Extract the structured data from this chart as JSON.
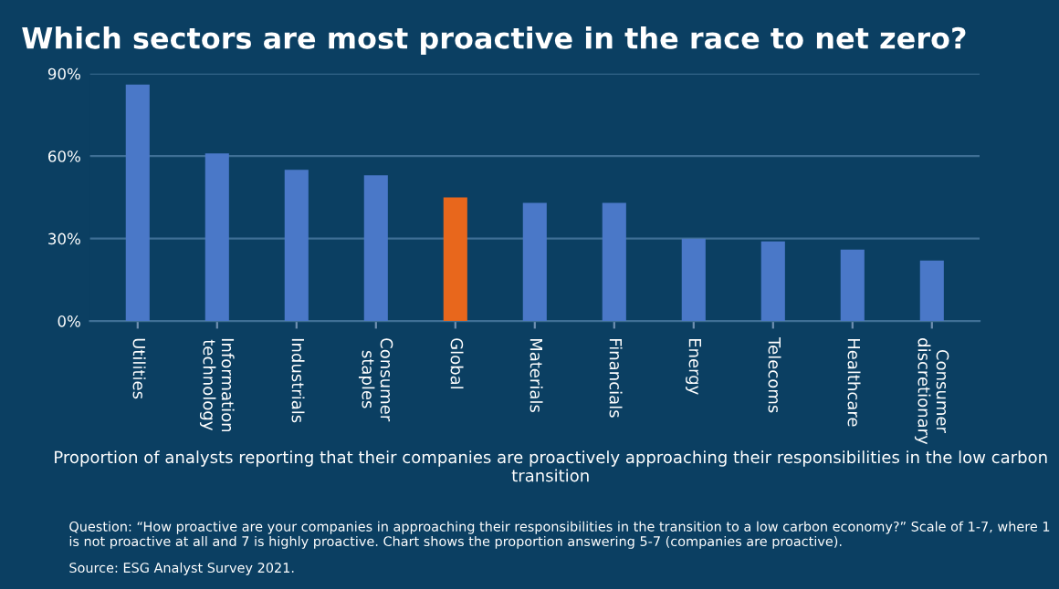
{
  "chart_data": {
    "type": "bar",
    "title": "Which sectors are most proactive in the race to net zero?",
    "categories": [
      "Utilities",
      "Information\ntechnology",
      "Industrials",
      "Consumer\nstaples",
      "Global",
      "Materials",
      "Financials",
      "Energy",
      "Telecoms",
      "Healthcare",
      "Consumer\ndiscretionary"
    ],
    "values": [
      86,
      61,
      55,
      53,
      45,
      43,
      43,
      30,
      29,
      26,
      22
    ],
    "colors": [
      "#4a78c8",
      "#4a78c8",
      "#4a78c8",
      "#4a78c8",
      "#e8671c",
      "#4a78c8",
      "#4a78c8",
      "#4a78c8",
      "#4a78c8",
      "#4a78c8",
      "#4a78c8"
    ],
    "ylim": [
      0,
      90
    ],
    "yticks": [
      {
        "value": 0,
        "label": "0%"
      },
      {
        "value": 30,
        "label": "30%"
      },
      {
        "value": 60,
        "label": "60%"
      },
      {
        "value": 90,
        "label": "90%"
      }
    ],
    "grid": "y",
    "xlabel": "Proportion of analysts reporting that their companies are proactively approaching their responsibilities in the low carbon transition",
    "annotations": [
      "Question: “How proactive are your companies in approaching their responsibilities in the transition to a low carbon economy?” Scale of 1-7, where 1 is not proactive at all and 7 is highly proactive. Chart shows the proportion answering 5-7 (companies are proactive).",
      "Source: ESG Analyst Survey 2021."
    ]
  }
}
